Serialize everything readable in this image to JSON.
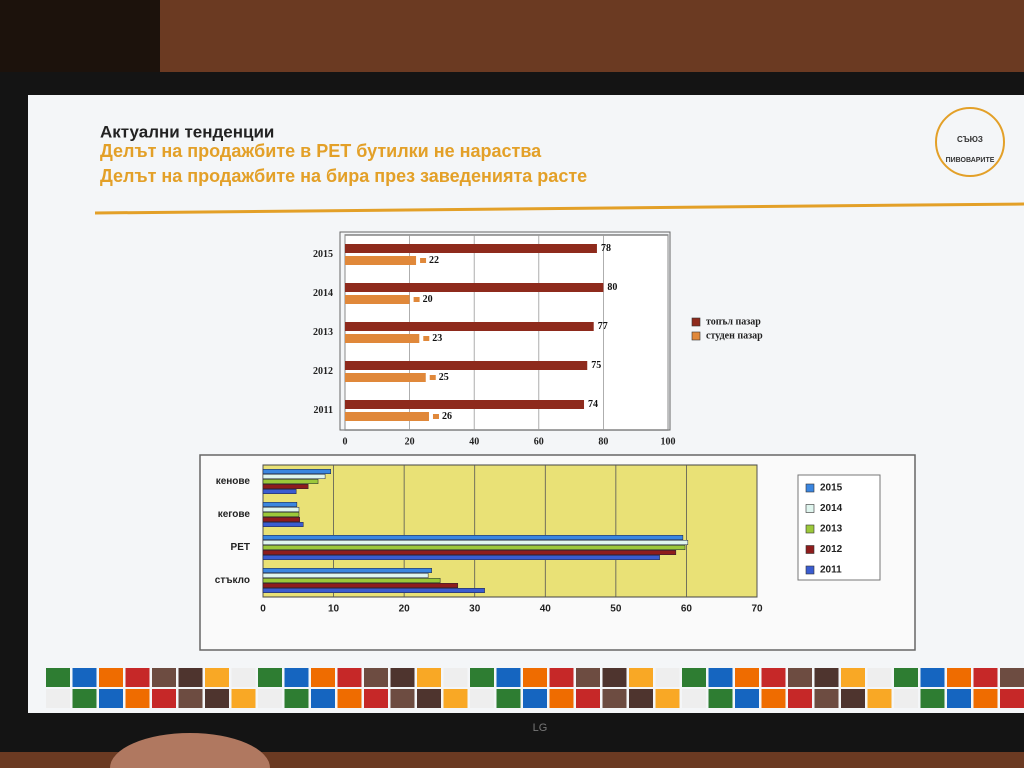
{
  "header": {
    "title": "Актуални тенденции",
    "line1": "Делът на продажбите в PET бутилки не нараства",
    "line2": "Делът на продажбите на бира през заведенията расте"
  },
  "logo": {
    "top": "СЪЮЗ",
    "bottom": "ПИВОВАРИТЕ"
  },
  "brand": "LG",
  "chart_data": [
    {
      "type": "hbar",
      "categories": [
        "2015",
        "2014",
        "2013",
        "2012",
        "2011"
      ],
      "series": [
        {
          "name": "топъл пазар",
          "color": "#8e2a1c",
          "values": [
            78,
            80,
            77,
            75,
            74
          ]
        },
        {
          "name": "студен пазар",
          "color": "#e0883a",
          "values": [
            22,
            20,
            23,
            25,
            26
          ]
        }
      ],
      "xlim": [
        0,
        100
      ],
      "xticks": [
        0,
        20,
        40,
        60,
        80,
        100
      ],
      "grid": true,
      "legend": "right"
    },
    {
      "type": "hbar",
      "categories": [
        "кенове",
        "кегове",
        "PET",
        "стъкло"
      ],
      "series": [
        {
          "name": "2015",
          "color": "#3a86e0",
          "values": [
            9.6,
            4.8,
            59.5,
            23.9
          ]
        },
        {
          "name": "2014",
          "color": "#dff5ee",
          "values": [
            8.8,
            5.1,
            60.2,
            23.4
          ]
        },
        {
          "name": "2013",
          "color": "#9cc83a",
          "values": [
            7.8,
            5.1,
            59.8,
            25.1
          ]
        },
        {
          "name": "2012",
          "color": "#8e1c1c",
          "values": [
            6.4,
            5.2,
            58.5,
            27.6
          ]
        },
        {
          "name": "2011",
          "color": "#3a5cd0",
          "values": [
            4.7,
            5.7,
            56.2,
            31.4
          ]
        }
      ],
      "xlim": [
        0,
        70
      ],
      "xticks": [
        0,
        10,
        20,
        30,
        40,
        50,
        60,
        70
      ],
      "grid": true,
      "legend": "right"
    }
  ]
}
